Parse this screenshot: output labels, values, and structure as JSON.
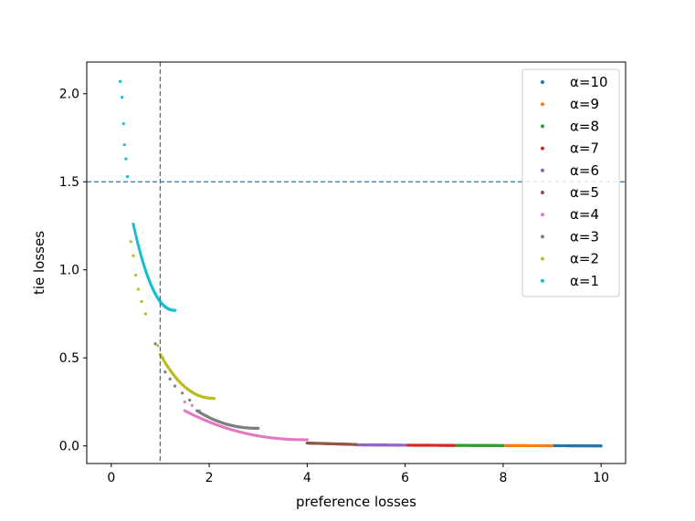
{
  "chart_data": {
    "type": "scatter",
    "title": "",
    "xlabel": "preference losses",
    "ylabel": "tie losses",
    "xlim": [
      -0.5,
      10.5
    ],
    "ylim": [
      -0.1,
      2.18
    ],
    "xticks": [
      "0",
      "2",
      "4",
      "6",
      "8",
      "10"
    ],
    "yticks": [
      "0.0",
      "0.5",
      "1.0",
      "1.5",
      "2.0"
    ],
    "grid": false,
    "legend_position": "top-right",
    "reference_lines": [
      {
        "orientation": "vertical",
        "x": 1.0,
        "color": "#1f77b4",
        "style": "dashed"
      },
      {
        "orientation": "horizontal",
        "y": 1.5,
        "color": "#1f77b4",
        "style": "dashed"
      }
    ],
    "series": [
      {
        "name": "α=10",
        "color": "#1f77b4",
        "x_range": [
          9.0,
          10.0
        ],
        "y_range": [
          0.001,
          0.0
        ],
        "shape": "tail"
      },
      {
        "name": "α=9",
        "color": "#ff7f0e",
        "x_range": [
          8.0,
          9.0
        ],
        "y_range": [
          0.002,
          0.001
        ],
        "shape": "tail"
      },
      {
        "name": "α=8",
        "color": "#2ca02c",
        "x_range": [
          7.0,
          8.0
        ],
        "y_range": [
          0.003,
          0.002
        ],
        "shape": "tail"
      },
      {
        "name": "α=7",
        "color": "#d62728",
        "x_range": [
          6.0,
          7.0
        ],
        "y_range": [
          0.004,
          0.003
        ],
        "shape": "tail"
      },
      {
        "name": "α=6",
        "color": "#9467bd",
        "x_range": [
          5.0,
          6.0
        ],
        "y_range": [
          0.006,
          0.004
        ],
        "shape": "tail"
      },
      {
        "name": "α=5",
        "color": "#8c564b",
        "x_range": [
          4.0,
          5.0
        ],
        "y_range": [
          0.016,
          0.008
        ],
        "shape": "tail"
      },
      {
        "name": "α=4",
        "color": "#e377c2",
        "x_range": [
          1.5,
          4.0
        ],
        "y_range": [
          0.2,
          0.035
        ],
        "shape": "curve",
        "sparse": [
          [
            1.5,
            0.25
          ],
          [
            1.65,
            0.23
          ],
          [
            1.8,
            0.2
          ]
        ]
      },
      {
        "name": "α=3",
        "color": "#7f7f7f",
        "x_range": [
          1.75,
          3.0
        ],
        "y_range": [
          0.2,
          0.1
        ],
        "shape": "curve",
        "sparse": [
          [
            0.9,
            0.58
          ],
          [
            1.05,
            0.5
          ],
          [
            1.1,
            0.42
          ],
          [
            1.2,
            0.38
          ],
          [
            1.3,
            0.34
          ],
          [
            1.45,
            0.3
          ],
          [
            1.6,
            0.26
          ]
        ]
      },
      {
        "name": "α=2",
        "color": "#bcbd22",
        "x_range": [
          1.0,
          2.1
        ],
        "y_range": [
          0.52,
          0.27
        ],
        "shape": "curve",
        "sparse": [
          [
            0.4,
            1.16
          ],
          [
            0.45,
            1.08
          ],
          [
            0.5,
            0.97
          ],
          [
            0.55,
            0.89
          ],
          [
            0.62,
            0.82
          ],
          [
            0.7,
            0.75
          ],
          [
            0.95,
            0.57
          ]
        ]
      },
      {
        "name": "α=1",
        "color": "#17becf",
        "x_range": [
          0.45,
          1.3
        ],
        "y_range": [
          1.26,
          0.77
        ],
        "shape": "curve",
        "sparse": [
          [
            0.18,
            2.07
          ],
          [
            0.22,
            1.98
          ],
          [
            0.25,
            1.83
          ],
          [
            0.27,
            1.71
          ],
          [
            0.3,
            1.63
          ],
          [
            0.33,
            1.53
          ]
        ]
      }
    ]
  }
}
